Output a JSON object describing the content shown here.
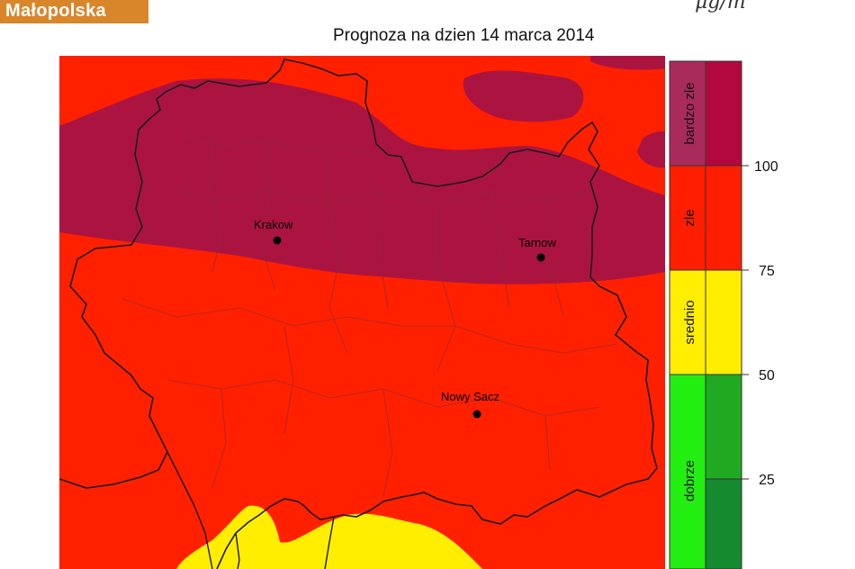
{
  "header": {
    "logo_text": "Małopolska",
    "unit_text": "μg/m",
    "title": "Prognoza na dzien  14 marca 2014"
  },
  "map": {
    "cities": [
      {
        "name": "Krakow"
      },
      {
        "name": "Tarnow"
      },
      {
        "name": "Nowy Sacz"
      }
    ],
    "zone_colors": {
      "bardzo_zle": "#ab1441",
      "zle": "#ff2000",
      "srednio": "#ffee00"
    }
  },
  "legend": {
    "categories": [
      {
        "label": "bardzo zle",
        "color": "#a92b5b",
        "dark_color": "#b3073f"
      },
      {
        "label": "zle",
        "color": "#ff1e00",
        "dark_color": "#ff1e00"
      },
      {
        "label": "srednio",
        "color": "#ffee00",
        "dark_color": "#ffee00"
      },
      {
        "label": "dobrze",
        "color": "#22ee11",
        "dark_color": "#1faa22"
      }
    ],
    "ticks": [
      "100",
      "75",
      "50",
      "25"
    ],
    "green_dark_split": "#168a2e"
  }
}
